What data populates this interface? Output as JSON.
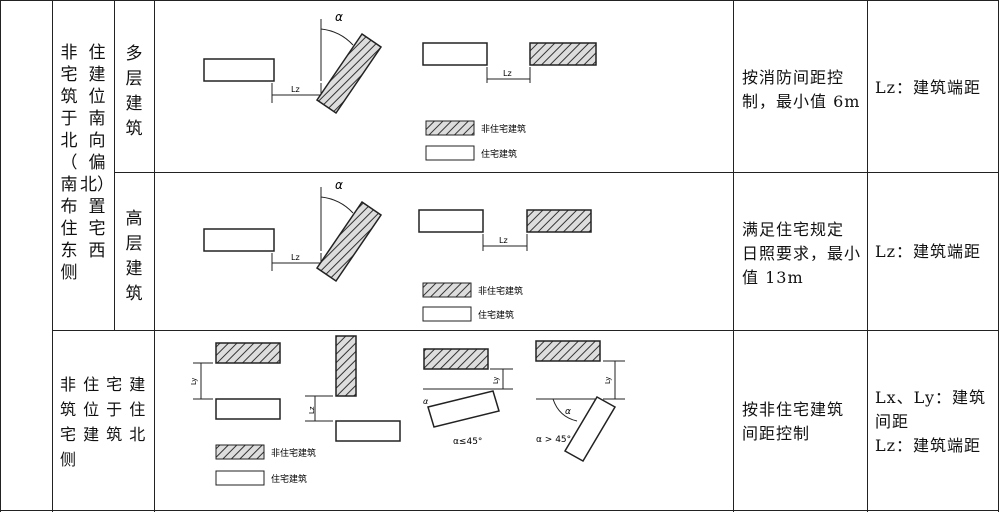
{
  "table": {
    "category": {
      "col1": [
        "非",
        "宅",
        "筑",
        "于",
        "北",
        "（",
        "南",
        "布",
        "住",
        "东",
        "侧"
      ],
      "col2": [
        "住",
        "建",
        "位",
        "南",
        "向",
        "偏",
        "北）",
        "置",
        "宅",
        "西"
      ]
    },
    "rows": [
      {
        "type_chars": [
          "多",
          "层",
          "建",
          "筑"
        ],
        "diagram": {
          "alpha": "α",
          "lz": "Lz",
          "legend_hatched": "非住宅建筑",
          "legend_plain": "住宅建筑"
        },
        "rule": [
          "按消防间距控",
          "制，最小值 6m"
        ],
        "note": "Lz：建筑端距"
      },
      {
        "type_chars": [
          "高",
          "层",
          "建",
          "筑"
        ],
        "diagram": {
          "alpha": "α",
          "lz": "Lz",
          "legend_hatched": "非住宅建筑",
          "legend_plain": "住宅建筑"
        },
        "rule": [
          "满足住宅规定",
          "日照要求，最小",
          "值 13m"
        ],
        "note": "Lz：建筑端距"
      },
      {
        "category_lines": [
          "非 住 宅 建",
          "筑 位 于 住",
          "宅 建 筑 北",
          "侧"
        ],
        "diagram": {
          "ly": "Ly",
          "lz": "Lz",
          "alpha": "α",
          "alpha_le": "α≤45°",
          "alpha_gt": "α > 45°",
          "legend_hatched": "非住宅建筑",
          "legend_plain": "住宅建筑"
        },
        "rule": [
          "按非住宅建筑",
          "间距控制"
        ],
        "note": [
          "Lx、Ly：建筑",
          "间距",
          "Lz：建筑端距"
        ]
      }
    ]
  }
}
